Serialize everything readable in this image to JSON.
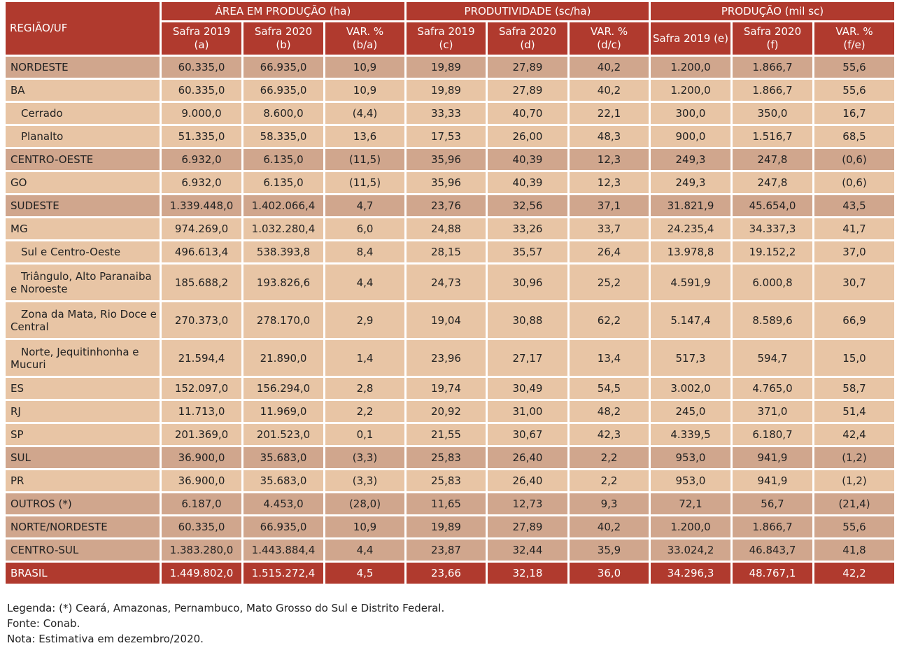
{
  "header": {
    "region_label": "REGIÃO/UF",
    "groups": [
      "ÁREA EM PRODUÇÃO (ha)",
      "PRODUTIVIDADE (sc/ha)",
      "PRODUÇÃO  (mil sc)"
    ],
    "sub": [
      [
        "Safra 2019",
        "(a)"
      ],
      [
        "Safra 2020",
        "(b)"
      ],
      [
        "VAR. %",
        "(b/a)"
      ],
      [
        "Safra 2019",
        "(c)"
      ],
      [
        "Safra 2020",
        "(d)"
      ],
      [
        "VAR. %",
        "(d/c)"
      ],
      [
        "Safra 2019 (e)",
        ""
      ],
      [
        "Safra 2020",
        "(f)"
      ],
      [
        "VAR. %",
        "(f/e)"
      ]
    ]
  },
  "rows": [
    {
      "name": "NORDESTE",
      "style": "dark",
      "indent": false,
      "cells": [
        "60.335,0",
        "66.935,0",
        "10,9",
        "19,89",
        "27,89",
        "40,2",
        "1.200,0",
        "1.866,7",
        "55,6"
      ]
    },
    {
      "name": "BA",
      "style": "light",
      "indent": false,
      "cells": [
        "60.335,0",
        "66.935,0",
        "10,9",
        "19,89",
        "27,89",
        "40,2",
        "1.200,0",
        "1.866,7",
        "55,6"
      ]
    },
    {
      "name": "Cerrado",
      "style": "light",
      "indent": true,
      "cells": [
        "9.000,0",
        "8.600,0",
        "(4,4)",
        "33,33",
        "40,70",
        "22,1",
        "300,0",
        "350,0",
        "16,7"
      ]
    },
    {
      "name": "Planalto",
      "style": "light",
      "indent": true,
      "cells": [
        "51.335,0",
        "58.335,0",
        "13,6",
        "17,53",
        "26,00",
        "48,3",
        "900,0",
        "1.516,7",
        "68,5"
      ]
    },
    {
      "name": "CENTRO-OESTE",
      "style": "dark",
      "indent": false,
      "cells": [
        "6.932,0",
        "6.135,0",
        "(11,5)",
        "35,96",
        "40,39",
        "12,3",
        "249,3",
        "247,8",
        "(0,6)"
      ]
    },
    {
      "name": "GO",
      "style": "light",
      "indent": false,
      "cells": [
        "6.932,0",
        "6.135,0",
        "(11,5)",
        "35,96",
        "40,39",
        "12,3",
        "249,3",
        "247,8",
        "(0,6)"
      ]
    },
    {
      "name": "SUDESTE",
      "style": "dark",
      "indent": false,
      "cells": [
        "1.339.448,0",
        "1.402.066,4",
        "4,7",
        "23,76",
        "32,56",
        "37,1",
        "31.821,9",
        "45.654,0",
        "43,5"
      ]
    },
    {
      "name": "MG",
      "style": "light",
      "indent": false,
      "cells": [
        "974.269,0",
        "1.032.280,4",
        "6,0",
        "24,88",
        "33,26",
        "33,7",
        "24.235,4",
        "34.337,3",
        "41,7"
      ]
    },
    {
      "name": "Sul e Centro-Oeste",
      "style": "light",
      "indent": true,
      "cells": [
        "496.613,4",
        "538.393,8",
        "8,4",
        "28,15",
        "35,57",
        "26,4",
        "13.978,8",
        "19.152,2",
        "37,0"
      ]
    },
    {
      "name": "Triângulo, Alto Paranaiba e Noroeste",
      "style": "light",
      "indent": "wrap",
      "cells": [
        "185.688,2",
        "193.826,6",
        "4,4",
        "24,73",
        "30,96",
        "25,2",
        "4.591,9",
        "6.000,8",
        "30,7"
      ]
    },
    {
      "name": "Zona da Mata, Rio Doce e Central",
      "style": "light",
      "indent": "wrap",
      "cells": [
        "270.373,0",
        "278.170,0",
        "2,9",
        "19,04",
        "30,88",
        "62,2",
        "5.147,4",
        "8.589,6",
        "66,9"
      ]
    },
    {
      "name": "Norte, Jequitinhonha e Mucuri",
      "style": "light",
      "indent": "wrap",
      "cells": [
        "21.594,4",
        "21.890,0",
        "1,4",
        "23,96",
        "27,17",
        "13,4",
        "517,3",
        "594,7",
        "15,0"
      ]
    },
    {
      "name": "ES",
      "style": "light",
      "indent": false,
      "cells": [
        "152.097,0",
        "156.294,0",
        "2,8",
        "19,74",
        "30,49",
        "54,5",
        "3.002,0",
        "4.765,0",
        "58,7"
      ]
    },
    {
      "name": "RJ",
      "style": "light",
      "indent": false,
      "cells": [
        "11.713,0",
        "11.969,0",
        "2,2",
        "20,92",
        "31,00",
        "48,2",
        "245,0",
        "371,0",
        "51,4"
      ]
    },
    {
      "name": "SP",
      "style": "light",
      "indent": false,
      "cells": [
        "201.369,0",
        "201.523,0",
        "0,1",
        "21,55",
        "30,67",
        "42,3",
        "4.339,5",
        "6.180,7",
        "42,4"
      ]
    },
    {
      "name": "SUL",
      "style": "dark",
      "indent": false,
      "cells": [
        "36.900,0",
        "35.683,0",
        "(3,3)",
        "25,83",
        "26,40",
        "2,2",
        "953,0",
        "941,9",
        "(1,2)"
      ]
    },
    {
      "name": "PR",
      "style": "light",
      "indent": false,
      "cells": [
        "36.900,0",
        "35.683,0",
        "(3,3)",
        "25,83",
        "26,40",
        "2,2",
        "953,0",
        "941,9",
        "(1,2)"
      ]
    },
    {
      "name": "OUTROS (*)",
      "style": "dark",
      "indent": false,
      "cells": [
        "6.187,0",
        "4.453,0",
        "(28,0)",
        "11,65",
        "12,73",
        "9,3",
        "72,1",
        "56,7",
        "(21,4)"
      ]
    },
    {
      "name": "NORTE/NORDESTE",
      "style": "dark",
      "indent": false,
      "cells": [
        "60.335,0",
        "66.935,0",
        "10,9",
        "19,89",
        "27,89",
        "40,2",
        "1.200,0",
        "1.866,7",
        "55,6"
      ]
    },
    {
      "name": "CENTRO-SUL",
      "style": "dark",
      "indent": false,
      "cells": [
        "1.383.280,0",
        "1.443.884,4",
        "4,4",
        "23,87",
        "32,44",
        "35,9",
        "33.024,2",
        "46.843,7",
        "41,8"
      ]
    },
    {
      "name": "BRASIL",
      "style": "total",
      "indent": false,
      "cells": [
        "1.449.802,0",
        "1.515.272,4",
        "4,5",
        "23,66",
        "32,18",
        "36,0",
        "34.296,3",
        "48.767,1",
        "42,2"
      ]
    }
  ],
  "notes": {
    "legend": "Legenda: (*) Ceará, Amazonas, Pernambuco, Mato Grosso do Sul e Distrito Federal.",
    "source": "Fonte: Conab.",
    "note": "Nota: Estimativa em dezembro/2020."
  }
}
